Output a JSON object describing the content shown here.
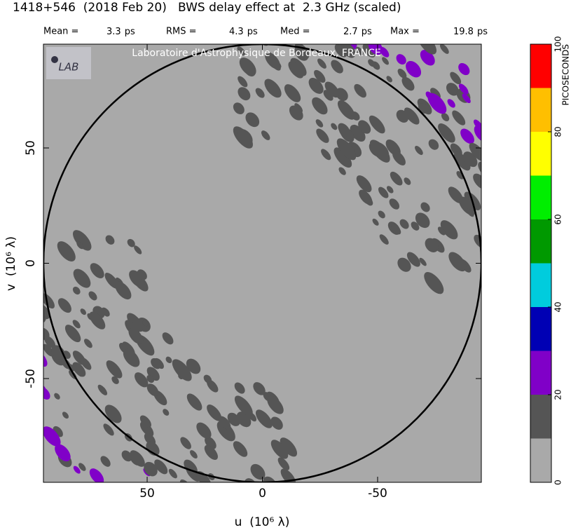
{
  "chart_data": {
    "type": "heatmap",
    "title": "1418+546  (2018 Feb 20)   BWS delay effect at  2.3 GHz (scaled)",
    "stats": [
      {
        "label": "Mean =",
        "value": 3.3,
        "unit": "ps"
      },
      {
        "label": "RMS =",
        "value": 4.3,
        "unit": "ps"
      },
      {
        "label": "Med =",
        "value": 2.7,
        "unit": "ps"
      },
      {
        "label": "Max =",
        "value": 19.8,
        "unit": "ps"
      }
    ],
    "watermark": "Laboratoire d'Astrophysique de Bordeaux, FRANCE",
    "logo": "LAB",
    "xlabel": "u  (10⁶ λ)",
    "ylabel": "v  (10⁶ λ)",
    "xlim": [
      95,
      -95
    ],
    "ylim": [
      -95,
      95
    ],
    "xticks": [
      50,
      0,
      -50
    ],
    "yticks": [
      -50,
      0,
      50
    ],
    "circle_radius": 95,
    "colorbar": {
      "label": "PICOSECONDS",
      "levels": [
        0,
        10,
        20,
        30,
        40,
        50,
        60,
        70,
        80,
        90,
        100
      ],
      "colors": [
        "#a9a9a9",
        "#555555",
        "#8000c8",
        "#0000b4",
        "#00ccdd",
        "#009900",
        "#00ee00",
        "#ffff00",
        "#ffbf00",
        "#ff0000"
      ],
      "ticks": [
        0,
        20,
        40,
        60,
        80,
        100
      ]
    }
  }
}
